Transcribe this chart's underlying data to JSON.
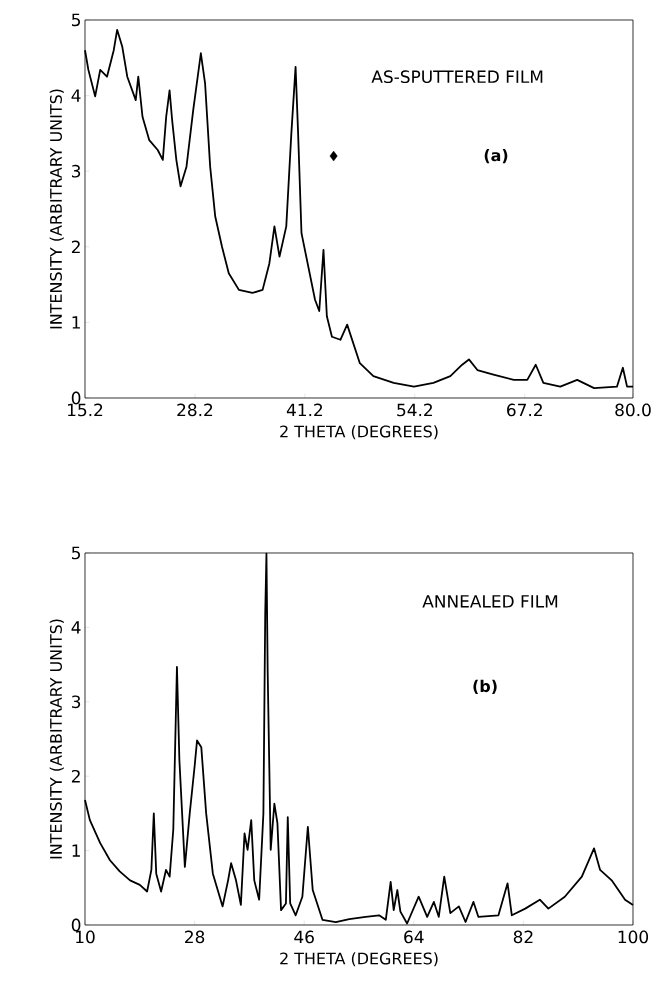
{
  "chart_data": [
    {
      "type": "line",
      "xlabel": "2 THETA (DEGREES)",
      "ylabel": "INTENSITY (ARBITRARY UNITS)",
      "annotations": [
        "AS-SPUTTERED FILM",
        "(a)"
      ],
      "xlim": [
        15.2,
        80.0
      ],
      "ylim": [
        0,
        5
      ],
      "xticks": [
        15.2,
        28.2,
        41.2,
        54.2,
        67.2,
        {
          "value": 80.0,
          "label": "80.0"
        }
      ],
      "yticks": [
        0,
        1,
        2,
        3,
        4,
        5
      ],
      "series": [
        {
          "color": "#000000",
          "x": [
            15.2,
            15.6,
            16.4,
            17.0,
            17.8,
            18.6,
            19.0,
            19.6,
            20.2,
            21.2,
            21.5,
            22.0,
            22.8,
            23.8,
            24.4,
            24.8,
            25.2,
            25.5,
            26.0,
            26.5,
            27.2,
            28.0,
            28.9,
            29.4,
            30.0,
            30.6,
            31.4,
            32.2,
            33.4,
            35.0,
            36.2,
            37.0,
            37.6,
            38.2,
            39.0,
            39.6,
            40.1,
            40.4,
            40.8,
            41.6,
            42.4,
            42.9,
            43.4,
            43.8,
            44.4,
            45.4,
            46.2,
            47.7,
            49.3,
            51.7,
            54.1,
            56.4,
            58.4,
            59.8,
            60.6,
            61.6,
            63.5,
            65.9,
            67.5,
            68.5,
            69.4,
            71.4,
            73.4,
            75.4,
            78.1,
            78.8,
            79.3,
            80.0
          ],
          "values": [
            4.6,
            4.34,
            3.99,
            4.34,
            4.25,
            4.6,
            4.87,
            4.65,
            4.25,
            3.94,
            4.25,
            3.72,
            3.41,
            3.28,
            3.15,
            3.72,
            4.07,
            3.68,
            3.15,
            2.8,
            3.06,
            3.81,
            4.56,
            4.16,
            3.06,
            2.4,
            2.0,
            1.65,
            1.43,
            1.39,
            1.43,
            1.78,
            2.27,
            1.87,
            2.27,
            3.5,
            4.38,
            3.5,
            2.18,
            1.74,
            1.3,
            1.15,
            1.96,
            1.08,
            0.81,
            0.77,
            0.97,
            0.46,
            0.29,
            0.2,
            0.15,
            0.2,
            0.29,
            0.44,
            0.51,
            0.37,
            0.31,
            0.24,
            0.24,
            0.44,
            0.2,
            0.15,
            0.24,
            0.13,
            0.15,
            0.4,
            0.15,
            0.15
          ]
        },
        {
          "type": "scatter",
          "marker": "diamond",
          "color": "#000000",
          "x": [
            44.6
          ],
          "values": [
            3.2
          ]
        }
      ]
    },
    {
      "type": "line",
      "xlabel": "2 THETA (DEGREES)",
      "ylabel": "INTENSITY (ARBITRARY UNITS)",
      "annotations": [
        "ANNEALED FILM",
        "(b)"
      ],
      "xlim": [
        10,
        100
      ],
      "ylim": [
        0,
        5
      ],
      "xticks": [
        10,
        28,
        46,
        64,
        82,
        100
      ],
      "yticks": [
        0,
        1,
        2,
        3,
        4,
        5
      ],
      "series": [
        {
          "color": "#000000",
          "x": [
            10,
            10.8,
            12.5,
            14.1,
            15.7,
            17.4,
            19.0,
            20.2,
            20.9,
            21.3,
            21.7,
            22.5,
            23.3,
            23.9,
            24.5,
            25.1,
            25.5,
            26.4,
            27.2,
            28.0,
            28.4,
            29.1,
            29.9,
            31.0,
            32.6,
            33.5,
            34.0,
            34.8,
            35.6,
            36.2,
            36.7,
            37.3,
            37.8,
            38.6,
            39.3,
            39.6,
            39.8,
            40.0,
            40.5,
            41.1,
            41.6,
            42.2,
            43.0,
            43.3,
            43.7,
            44.6,
            45.7,
            46.6,
            47.4,
            49.0,
            51.2,
            53.4,
            56.1,
            58.3,
            59.4,
            60.2,
            60.7,
            61.3,
            61.8,
            62.9,
            64.8,
            66.2,
            67.3,
            68.1,
            69.0,
            70.0,
            71.4,
            72.5,
            73.8,
            74.6,
            77.9,
            79.4,
            80.1,
            82.3,
            84.7,
            86.1,
            88.8,
            91.6,
            93.6,
            94.6,
            96.5,
            98.7,
            100
          ],
          "values": [
            1.68,
            1.41,
            1.1,
            0.87,
            0.72,
            0.6,
            0.54,
            0.45,
            0.74,
            1.5,
            0.69,
            0.45,
            0.74,
            0.65,
            1.28,
            3.47,
            2.22,
            0.78,
            1.5,
            2.13,
            2.48,
            2.39,
            1.5,
            0.69,
            0.25,
            0.6,
            0.83,
            0.6,
            0.27,
            1.23,
            1.01,
            1.41,
            0.6,
            0.34,
            1.5,
            4.19,
            4.99,
            3.42,
            1.01,
            1.63,
            1.37,
            0.2,
            0.29,
            1.45,
            0.29,
            0.13,
            0.38,
            1.32,
            0.47,
            0.07,
            0.04,
            0.08,
            0.11,
            0.13,
            0.07,
            0.58,
            0.2,
            0.47,
            0.18,
            0.02,
            0.38,
            0.11,
            0.31,
            0.11,
            0.65,
            0.16,
            0.25,
            0.04,
            0.31,
            0.11,
            0.13,
            0.56,
            0.13,
            0.22,
            0.34,
            0.22,
            0.38,
            0.65,
            1.03,
            0.74,
            0.6,
            0.34,
            0.27
          ]
        }
      ]
    }
  ]
}
